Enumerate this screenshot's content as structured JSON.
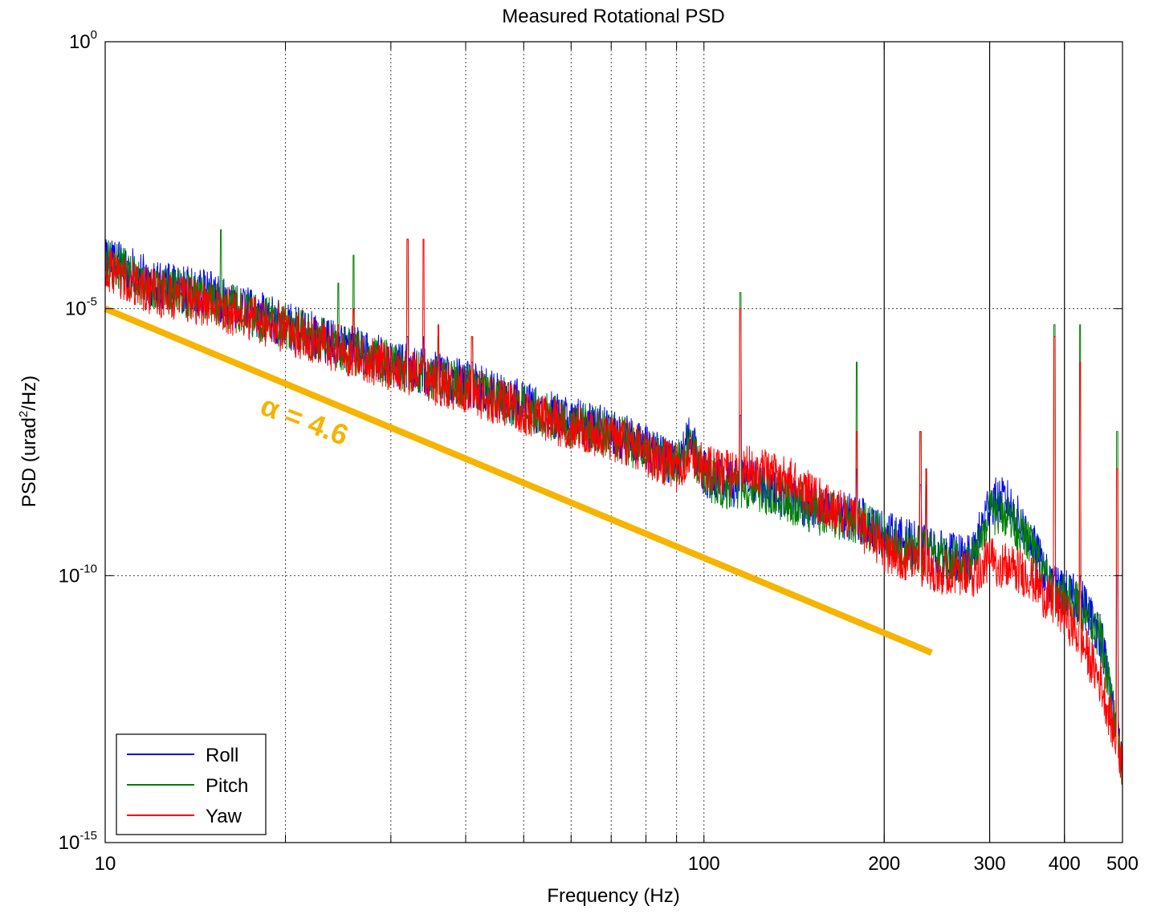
{
  "chart_data": {
    "type": "line",
    "title": "Measured Rotational PSD",
    "xlabel": "Frequency (Hz)",
    "ylabel_main": "PSD (urad",
    "ylabel_sup": "2",
    "ylabel_tail": "/Hz)",
    "x_scale": "log",
    "y_scale": "log",
    "xlim": [
      10,
      500
    ],
    "ylim": [
      1e-15,
      1
    ],
    "grid": true,
    "x_ticks": [
      {
        "value": 10,
        "label": "10"
      },
      {
        "value": 100,
        "label": "100"
      },
      {
        "value": 200,
        "label": "200"
      },
      {
        "value": 300,
        "label": "300"
      },
      {
        "value": 400,
        "label": "400"
      },
      {
        "value": 500,
        "label": "500"
      }
    ],
    "y_ticks": [
      {
        "value": 1,
        "base": "10",
        "exp": "0"
      },
      {
        "value": 1e-05,
        "base": "10",
        "exp": "-5"
      },
      {
        "value": 1e-10,
        "base": "10",
        "exp": "-10"
      },
      {
        "value": 1e-15,
        "base": "10",
        "exp": "-15"
      }
    ],
    "legend": {
      "position": "bottom-left",
      "entries": [
        {
          "name": "Roll",
          "color": "#0000ff"
        },
        {
          "name": "Pitch",
          "color": "#007f00"
        },
        {
          "name": "Yaw",
          "color": "#ff0000"
        }
      ]
    },
    "series": [
      {
        "name": "Roll",
        "color": "#0000ff",
        "x": [
          10,
          12,
          15,
          18,
          20,
          25,
          30,
          35,
          40,
          50,
          60,
          70,
          80,
          90,
          95,
          100,
          110,
          120,
          140,
          160,
          180,
          200,
          250,
          280,
          300,
          320,
          350,
          380,
          400,
          430,
          460,
          500
        ],
        "y": [
          0.0001,
          3e-05,
          1.8e-05,
          8e-06,
          5e-06,
          2e-06,
          1e-06,
          6e-07,
          4e-07,
          1.6e-07,
          8e-08,
          5e-08,
          2.5e-08,
          1.2e-08,
          4e-08,
          8e-09,
          5e-09,
          6e-09,
          3e-09,
          1.5e-09,
          1.2e-09,
          6e-10,
          2.5e-10,
          2e-10,
          2.5e-09,
          2.5e-09,
          5e-10,
          6e-11,
          5e-11,
          3e-11,
          8e-12,
          3e-14
        ]
      },
      {
        "name": "Pitch",
        "color": "#007f00",
        "x": [
          10,
          12,
          15,
          18,
          20,
          25,
          30,
          35,
          40,
          50,
          60,
          70,
          80,
          90,
          95,
          100,
          110,
          120,
          140,
          160,
          180,
          200,
          250,
          280,
          300,
          320,
          350,
          380,
          400,
          430,
          460,
          500
        ],
        "y": [
          8e-05,
          2.5e-05,
          1.5e-05,
          7e-06,
          4.5e-06,
          1.8e-06,
          9e-07,
          5e-07,
          3.5e-07,
          1.4e-07,
          7e-08,
          4.5e-08,
          2.2e-08,
          1.1e-08,
          3e-08,
          7e-09,
          4.5e-09,
          5e-09,
          2.5e-09,
          1.4e-09,
          1.1e-09,
          5e-10,
          2.2e-10,
          1.8e-10,
          1.5e-09,
          1.5e-09,
          4e-10,
          5e-11,
          4e-11,
          2.5e-11,
          7e-12,
          2e-14
        ]
      },
      {
        "name": "Yaw",
        "color": "#ff0000",
        "x": [
          10,
          12,
          15,
          18,
          20,
          25,
          30,
          35,
          40,
          50,
          60,
          70,
          80,
          90,
          95,
          100,
          110,
          120,
          140,
          160,
          180,
          200,
          250,
          280,
          300,
          320,
          350,
          380,
          400,
          430,
          460,
          500
        ],
        "y": [
          5e-05,
          2e-05,
          1.2e-05,
          6e-06,
          4e-06,
          1.5e-06,
          8e-07,
          4.5e-07,
          3e-07,
          1.2e-07,
          6e-08,
          4e-08,
          2e-08,
          1e-08,
          2e-08,
          1e-08,
          8e-09,
          1e-08,
          6e-09,
          2e-09,
          1e-09,
          3e-10,
          1.2e-10,
          1e-10,
          2e-10,
          1.5e-10,
          1e-10,
          3e-11,
          2e-11,
          5e-12,
          1e-12,
          3e-14
        ]
      }
    ],
    "peaks": [
      {
        "x": 15.6,
        "roll": 1e-06,
        "pitch": 0.0003,
        "yaw": 1e-06
      },
      {
        "x": 24.5,
        "roll": 1e-06,
        "pitch": 3e-05,
        "yaw": 5e-06
      },
      {
        "x": 26,
        "roll": 1e-06,
        "pitch": 0.0001,
        "yaw": 1e-05
      },
      {
        "x": 32,
        "roll": 3e-06,
        "pitch": 0.0002,
        "yaw": 0.0002
      },
      {
        "x": 34,
        "roll": 3e-06,
        "pitch": 1e-06,
        "yaw": 0.0002
      },
      {
        "x": 36,
        "roll": 1e-06,
        "pitch": 3e-06,
        "yaw": 5e-06
      },
      {
        "x": 41,
        "roll": 1e-06,
        "pitch": 3e-06,
        "yaw": 3e-06
      },
      {
        "x": 115,
        "roll": 1e-07,
        "pitch": 2e-05,
        "yaw": 1e-05
      },
      {
        "x": 180,
        "roll": 1e-08,
        "pitch": 1e-06,
        "yaw": 5e-08
      },
      {
        "x": 230,
        "roll": 5e-09,
        "pitch": 5e-08,
        "yaw": 5e-08
      },
      {
        "x": 235,
        "roll": 5e-09,
        "pitch": 1e-08,
        "yaw": 1e-08
      },
      {
        "x": 385,
        "roll": 1e-10,
        "pitch": 5e-06,
        "yaw": 3e-06
      },
      {
        "x": 425,
        "roll": 1e-10,
        "pitch": 5e-06,
        "yaw": 1e-06
      },
      {
        "x": 490,
        "roll": 1e-10,
        "pitch": 5e-08,
        "yaw": 1e-08
      }
    ],
    "fit_line": {
      "x": [
        10,
        240
      ],
      "y": [
        1e-05,
        3.6e-12
      ],
      "color": "#f5b400",
      "label": "α = 4.6"
    }
  }
}
